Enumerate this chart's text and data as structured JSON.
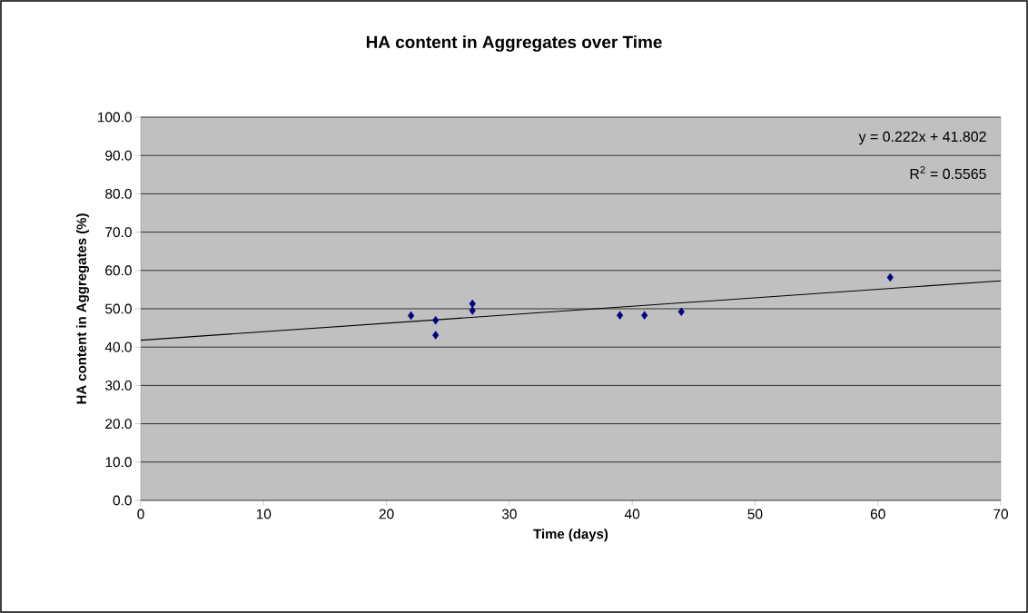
{
  "chart_data": {
    "type": "scatter",
    "title": "HA content in Aggregates over Time",
    "xlabel": "Time (days)",
    "ylabel": "HA content in Aggregates (%)",
    "xlim": [
      0,
      70
    ],
    "xticks": [
      0,
      10,
      20,
      30,
      40,
      50,
      60,
      70
    ],
    "ylim": [
      0,
      100
    ],
    "yticks": [
      {
        "value": 0,
        "label": "0.0"
      },
      {
        "value": 10,
        "label": "10.0"
      },
      {
        "value": 20,
        "label": "20.0"
      },
      {
        "value": 30,
        "label": "30.0"
      },
      {
        "value": 40,
        "label": "40.0"
      },
      {
        "value": 50,
        "label": "50.0"
      },
      {
        "value": 60,
        "label": "60.0"
      },
      {
        "value": 70,
        "label": "70.0"
      },
      {
        "value": 80,
        "label": "80.0"
      },
      {
        "value": 90,
        "label": "90.0"
      },
      {
        "value": 100,
        "label": "100.0"
      }
    ],
    "grid": "y",
    "marker": "diamond",
    "series": [
      {
        "color": "#000080",
        "x": [
          22,
          24,
          24,
          27,
          27,
          39,
          41,
          44,
          61
        ],
        "values": [
          48.2,
          47.0,
          43.1,
          51.3,
          49.5,
          48.3,
          48.3,
          49.2,
          58.2
        ]
      },
      {
        "type": "line",
        "color": "#000000",
        "marker": "none",
        "x": [
          0,
          70
        ],
        "values": [
          41.8,
          57.3
        ]
      }
    ],
    "annotations": [
      "y = 0.222x + 41.802",
      "R$^{2}$ = 0.5565"
    ]
  }
}
